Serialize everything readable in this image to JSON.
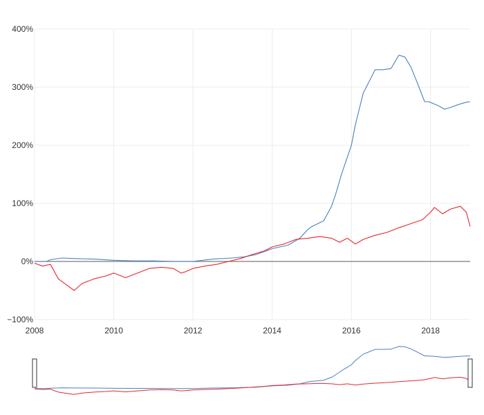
{
  "chart_data": {
    "type": "line",
    "title": "",
    "xlabel": "",
    "ylabel": "",
    "x_range": [
      2008.0,
      2019.0
    ],
    "y_range": [
      -100,
      400
    ],
    "x_ticks": [
      2008,
      2010,
      2012,
      2014,
      2016,
      2018
    ],
    "x_tick_labels": [
      "2008",
      "2010",
      "2012",
      "2014",
      "2016",
      "2018"
    ],
    "y_ticks": [
      -100,
      0,
      100,
      200,
      300,
      400
    ],
    "y_tick_labels": [
      "−100%",
      "0%",
      "100%",
      "200%",
      "300%",
      "400%"
    ],
    "grid": true,
    "legend": "none",
    "has_navigator": true,
    "series": [
      {
        "color": "#4a7ebf",
        "x": [
          2008.0,
          2008.3,
          2008.4,
          2008.7,
          2009.0,
          2009.5,
          2010.0,
          2010.5,
          2011.0,
          2011.5,
          2012.0,
          2012.5,
          2013.0,
          2013.3,
          2013.6,
          2014.0,
          2014.4,
          2014.7,
          2014.9,
          2015.0,
          2015.3,
          2015.5,
          2015.6,
          2015.75,
          2015.85,
          2016.0,
          2016.1,
          2016.3,
          2016.45,
          2016.6,
          2016.8,
          2017.0,
          2017.2,
          2017.35,
          2017.5,
          2017.65,
          2017.85,
          2017.95,
          2018.2,
          2018.35,
          2018.5,
          2018.7,
          2018.9,
          2019.0
        ],
        "y": [
          0,
          0,
          3,
          6,
          5,
          4,
          2,
          1,
          1,
          0,
          0,
          4,
          6,
          8,
          12,
          22,
          28,
          40,
          55,
          60,
          70,
          95,
          115,
          150,
          170,
          200,
          235,
          290,
          310,
          330,
          330,
          332,
          355,
          352,
          335,
          310,
          275,
          275,
          268,
          262,
          265,
          270,
          274,
          275
        ]
      },
      {
        "color": "#e8262b",
        "x": [
          2008.0,
          2008.2,
          2008.4,
          2008.6,
          2008.8,
          2009.0,
          2009.2,
          2009.5,
          2009.8,
          2010.0,
          2010.3,
          2010.6,
          2010.9,
          2011.2,
          2011.5,
          2011.7,
          2011.8,
          2012.0,
          2012.3,
          2012.6,
          2012.9,
          2013.2,
          2013.5,
          2013.8,
          2014.0,
          2014.3,
          2014.6,
          2014.9,
          2015.2,
          2015.5,
          2015.7,
          2015.9,
          2016.1,
          2016.3,
          2016.6,
          2016.9,
          2017.2,
          2017.5,
          2017.8,
          2018.0,
          2018.1,
          2018.3,
          2018.5,
          2018.75,
          2018.9,
          2019.0
        ],
        "y": [
          -3,
          -8,
          -5,
          -30,
          -40,
          -50,
          -38,
          -30,
          -25,
          -20,
          -28,
          -20,
          -12,
          -10,
          -12,
          -20,
          -18,
          -12,
          -8,
          -5,
          0,
          5,
          12,
          18,
          25,
          30,
          38,
          40,
          43,
          40,
          33,
          40,
          30,
          38,
          45,
          50,
          58,
          65,
          72,
          85,
          93,
          82,
          90,
          95,
          85,
          60
        ]
      }
    ]
  }
}
